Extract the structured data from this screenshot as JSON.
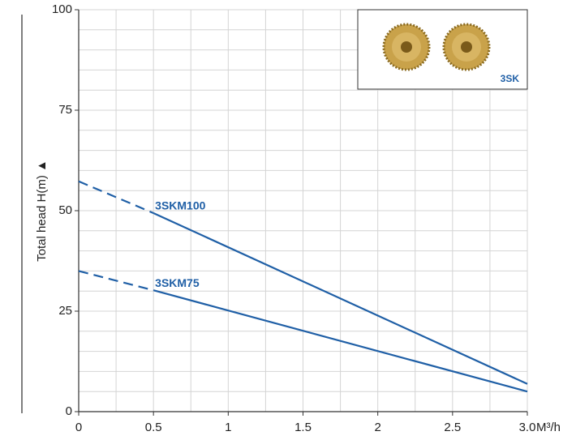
{
  "chart_data": {
    "type": "line",
    "series": [
      {
        "name": "3SKM100",
        "color": "#1f5fa6",
        "x": [
          0,
          0.5,
          3.0
        ],
        "values": [
          57.3,
          49.4,
          6.9
        ]
      },
      {
        "name": "3SKM75",
        "color": "#1f5fa6",
        "x": [
          0,
          0.5,
          3.0
        ],
        "values": [
          35,
          30.2,
          5
        ]
      }
    ],
    "xlim": [
      0,
      3.0
    ],
    "ylim": [
      0,
      100
    ],
    "xticks": [
      0,
      0.5,
      1,
      1.5,
      2,
      2.5,
      {
        "value": 3,
        "label": "3.0"
      }
    ],
    "yticks": [
      0,
      25,
      50,
      75,
      100
    ],
    "xgrid": [
      0.25,
      0.5,
      0.75,
      1,
      1.25,
      1.5,
      1.75,
      2,
      2.25,
      2.5,
      2.75,
      3
    ],
    "ygrid": [
      5,
      10,
      15,
      20,
      25,
      30,
      35,
      40,
      45,
      50,
      55,
      60,
      65,
      70,
      75,
      80,
      85,
      90,
      95,
      100
    ],
    "x_label": "M³/h",
    "y_label": "Total head H(m) ▲",
    "inset_label": "3SK",
    "grid": true
  }
}
